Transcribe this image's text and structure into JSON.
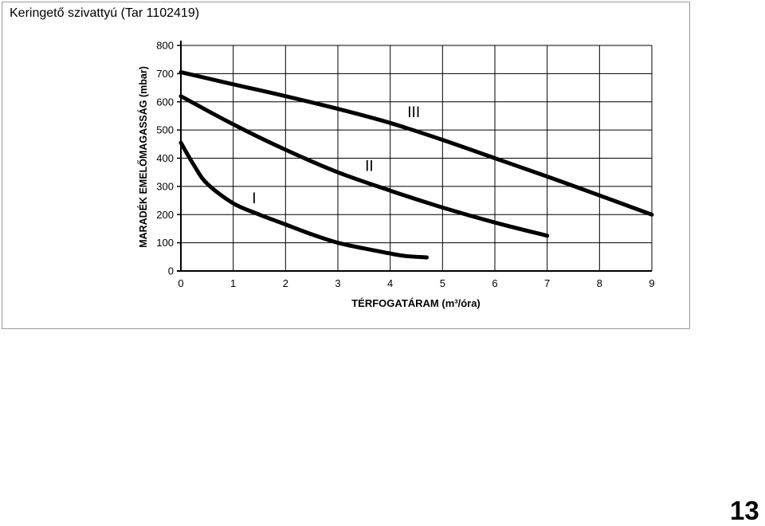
{
  "title": "Keringető szivattyú (Tar 1102419)",
  "page_number": "13",
  "chart_data": {
    "type": "line",
    "xlabel": "TÉRFOGATÁRAM (m³/óra)",
    "ylabel": "MARADÉK EMELŐMAGASSÁG (mbar)",
    "xlim": [
      0,
      9
    ],
    "ylim": [
      0,
      800
    ],
    "x_ticks": [
      "0",
      "1",
      "2",
      "3",
      "4",
      "5",
      "6",
      "7",
      "8",
      "9"
    ],
    "y_ticks": [
      "0",
      "100",
      "200",
      "300",
      "400",
      "500",
      "600",
      "700",
      "800"
    ],
    "grid": true,
    "series": [
      {
        "name": "I",
        "x": [
          0,
          0.25,
          0.5,
          1.0,
          1.5,
          2.0,
          2.5,
          3.0,
          3.5,
          4.0,
          4.3,
          4.7
        ],
        "y": [
          455,
          375,
          310,
          240,
          200,
          165,
          130,
          100,
          80,
          62,
          53,
          48
        ]
      },
      {
        "name": "II",
        "x": [
          0,
          1,
          2,
          3,
          4,
          5,
          6,
          7
        ],
        "y": [
          620,
          520,
          430,
          350,
          285,
          225,
          172,
          125
        ]
      },
      {
        "name": "III",
        "x": [
          0,
          1,
          2,
          3,
          4,
          5,
          6,
          7,
          8,
          9
        ],
        "y": [
          705,
          662,
          620,
          575,
          525,
          465,
          400,
          335,
          268,
          200
        ]
      }
    ]
  }
}
